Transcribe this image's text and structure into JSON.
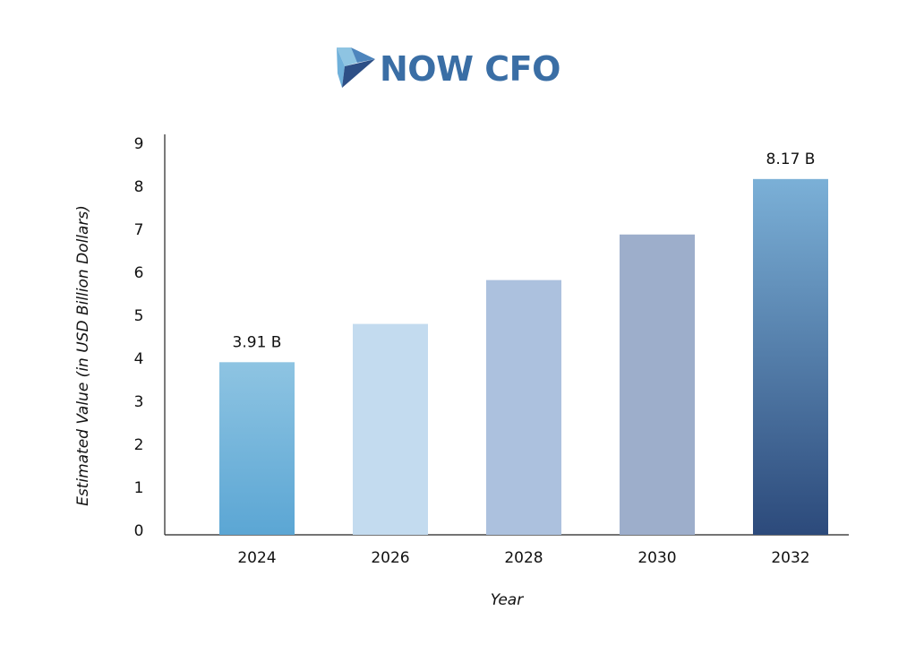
{
  "brand": {
    "name": "NOW CFO",
    "logo_icon": "now-cfo-arrow-logo",
    "color": "#3a6ea5"
  },
  "chart_data": {
    "type": "bar",
    "categories": [
      "2024",
      "2026",
      "2028",
      "2030",
      "2032"
    ],
    "values": [
      3.91,
      4.8,
      5.82,
      6.88,
      8.17
    ],
    "data_labels": [
      "3.91 B",
      "",
      "",
      "",
      "8.17 B"
    ],
    "title": "",
    "xlabel": "Year",
    "ylabel": "Estimated Value (in USD Billion Dollars)",
    "ylim": [
      0,
      9
    ],
    "yticks": [
      0,
      1,
      2,
      3,
      4,
      5,
      6,
      7,
      8,
      9
    ],
    "grid": false,
    "legend": "none",
    "bar_colors": [
      {
        "top": "#8ec4e2",
        "bottom": "#5ba6d4"
      },
      {
        "top": "#c3dbef",
        "bottom": "#c3dbef"
      },
      {
        "top": "#acc1de",
        "bottom": "#acc1de"
      },
      {
        "top": "#9daecb",
        "bottom": "#9daecb"
      },
      {
        "top": "#7bb0d7",
        "bottom": "#2c4a7b"
      }
    ],
    "axis_color": "#222222"
  }
}
